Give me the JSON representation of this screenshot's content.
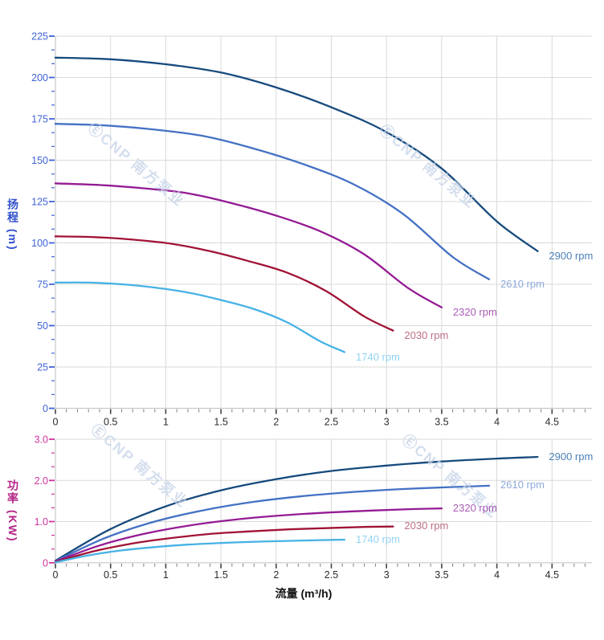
{
  "watermark": "ⒺCNP 南方泵业",
  "axis": {
    "grid_color": "#d9d9d9",
    "axis_line_color": "#c9c9c9",
    "x_tick_color": "#444444",
    "x_minor_tick_color": "#8a8a8a",
    "x_tick_label_color": "#2b2b2b"
  },
  "chart_data": [
    {
      "key": "head",
      "type": "line",
      "y_axis_title": "扬程 (m)",
      "axis_color": "#3050cc",
      "tick_color": "#3f63d8",
      "ylim": [
        0,
        225
      ],
      "xlim": [
        0,
        4.5
      ],
      "grid": true,
      "y_ticks": [
        {
          "v": 0,
          "label": "0"
        },
        {
          "v": 25,
          "label": "25"
        },
        {
          "v": 50,
          "label": "50"
        },
        {
          "v": 75,
          "label": "75"
        },
        {
          "v": 100,
          "label": "100"
        },
        {
          "v": 125,
          "label": "125"
        },
        {
          "v": 150,
          "label": "150"
        },
        {
          "v": 175,
          "label": "175"
        },
        {
          "v": 200,
          "label": "200"
        },
        {
          "v": 225,
          "label": "225"
        }
      ],
      "x_ticks": [
        {
          "v": 0,
          "label": "0"
        },
        {
          "v": 0.5,
          "label": "0.5"
        },
        {
          "v": 1,
          "label": "1"
        },
        {
          "v": 1.5,
          "label": "1.5"
        },
        {
          "v": 2,
          "label": "2"
        },
        {
          "v": 2.5,
          "label": "2.5"
        },
        {
          "v": 3,
          "label": "3"
        },
        {
          "v": 3.5,
          "label": "3.5"
        },
        {
          "v": 4,
          "label": "4"
        },
        {
          "v": 4.5,
          "label": "4.5"
        }
      ],
      "series": [
        {
          "name": "2900 rpm",
          "color": "#174a7d",
          "label_color": "#4d80b6",
          "points": [
            [
              0,
              212
            ],
            [
              0.5,
              211
            ],
            [
              1,
              208
            ],
            [
              1.5,
              203
            ],
            [
              2,
              194
            ],
            [
              2.5,
              182
            ],
            [
              3,
              167
            ],
            [
              3.5,
              145
            ],
            [
              4,
              113
            ],
            [
              4.37,
              95
            ]
          ]
        },
        {
          "name": "2610 rpm",
          "color": "#4471c4",
          "label_color": "#8ea9db",
          "points": [
            [
              0,
              172
            ],
            [
              0.45,
              171
            ],
            [
              0.9,
              168.5
            ],
            [
              1.35,
              164.5
            ],
            [
              1.8,
              157
            ],
            [
              2.25,
              147.5
            ],
            [
              2.7,
              135.5
            ],
            [
              3.15,
              117.5
            ],
            [
              3.6,
              91.5
            ],
            [
              3.93,
              78
            ]
          ]
        },
        {
          "name": "2320 rpm",
          "color": "#941b94",
          "label_color": "#a95cb5",
          "points": [
            [
              0,
              136
            ],
            [
              0.4,
              135
            ],
            [
              0.8,
              133
            ],
            [
              1.2,
              130
            ],
            [
              1.6,
              124
            ],
            [
              2,
              116.5
            ],
            [
              2.4,
              107
            ],
            [
              2.8,
              93
            ],
            [
              3.2,
              72.5
            ],
            [
              3.5,
              61
            ]
          ]
        },
        {
          "name": "2030 rpm",
          "color": "#a01334",
          "label_color": "#bd6f82",
          "points": [
            [
              0,
              104
            ],
            [
              0.35,
              103.5
            ],
            [
              0.7,
              102
            ],
            [
              1.05,
              99.5
            ],
            [
              1.4,
              95
            ],
            [
              1.75,
              89
            ],
            [
              2.1,
              82
            ],
            [
              2.45,
              71
            ],
            [
              2.8,
              55.5
            ],
            [
              3.06,
              47
            ]
          ]
        },
        {
          "name": "1740 rpm",
          "color": "#46b2e5",
          "label_color": "#90d3f3",
          "points": [
            [
              0,
              76
            ],
            [
              0.3,
              76
            ],
            [
              0.6,
              75
            ],
            [
              0.9,
              73
            ],
            [
              1.2,
              70
            ],
            [
              1.5,
              65.5
            ],
            [
              1.8,
              60
            ],
            [
              2.1,
              52
            ],
            [
              2.4,
              40.5
            ],
            [
              2.62,
              34
            ]
          ]
        }
      ]
    },
    {
      "key": "power",
      "type": "line",
      "y_axis_title": "功率 (KW)",
      "x_axis_title": "流量 (m³/h)",
      "axis_color": "#b32486",
      "tick_color": "#d0339b",
      "ylim": [
        0,
        3
      ],
      "xlim": [
        0,
        4.5
      ],
      "grid": true,
      "y_ticks": [
        {
          "v": 0,
          "label": "0"
        },
        {
          "v": 1,
          "label": "1.0"
        },
        {
          "v": 2,
          "label": "2.0"
        },
        {
          "v": 3,
          "label": "3.0"
        }
      ],
      "x_ticks": [
        {
          "v": 0,
          "label": "0"
        },
        {
          "v": 0.5,
          "label": "0.5"
        },
        {
          "v": 1,
          "label": "1"
        },
        {
          "v": 1.5,
          "label": "1.5"
        },
        {
          "v": 2,
          "label": "2"
        },
        {
          "v": 2.5,
          "label": "2.5"
        },
        {
          "v": 3,
          "label": "3"
        },
        {
          "v": 3.5,
          "label": "3.5"
        },
        {
          "v": 4,
          "label": "4"
        },
        {
          "v": 4.5,
          "label": "4.5"
        }
      ],
      "series": [
        {
          "name": "2900 rpm",
          "color": "#174a7d",
          "label_color": "#4d80b6",
          "points": [
            [
              0,
              0.05
            ],
            [
              0.5,
              0.82
            ],
            [
              1,
              1.37
            ],
            [
              1.5,
              1.76
            ],
            [
              2,
              2.03
            ],
            [
              2.5,
              2.23
            ],
            [
              3,
              2.36
            ],
            [
              3.5,
              2.46
            ],
            [
              4,
              2.53
            ],
            [
              4.37,
              2.57
            ]
          ]
        },
        {
          "name": "2610 rpm",
          "color": "#4471c4",
          "label_color": "#8ea9db",
          "points": [
            [
              0,
              0.04
            ],
            [
              0.45,
              0.6
            ],
            [
              0.9,
              1.0
            ],
            [
              1.35,
              1.28
            ],
            [
              1.8,
              1.48
            ],
            [
              2.25,
              1.62
            ],
            [
              2.7,
              1.72
            ],
            [
              3.15,
              1.79
            ],
            [
              3.6,
              1.84
            ],
            [
              3.93,
              1.87
            ]
          ]
        },
        {
          "name": "2320 rpm",
          "color": "#941b94",
          "label_color": "#a95cb5",
          "points": [
            [
              0,
              0.03
            ],
            [
              0.4,
              0.42
            ],
            [
              0.8,
              0.7
            ],
            [
              1.2,
              0.9
            ],
            [
              1.6,
              1.04
            ],
            [
              2,
              1.14
            ],
            [
              2.4,
              1.21
            ],
            [
              2.8,
              1.26
            ],
            [
              3.2,
              1.3
            ],
            [
              3.5,
              1.32
            ]
          ]
        },
        {
          "name": "2030 rpm",
          "color": "#a01334",
          "label_color": "#bd6f82",
          "points": [
            [
              0,
              0.02
            ],
            [
              0.35,
              0.28
            ],
            [
              0.7,
              0.47
            ],
            [
              1.05,
              0.6
            ],
            [
              1.4,
              0.7
            ],
            [
              1.75,
              0.76
            ],
            [
              2.1,
              0.81
            ],
            [
              2.45,
              0.84
            ],
            [
              2.8,
              0.87
            ],
            [
              3.06,
              0.88
            ]
          ]
        },
        {
          "name": "1740 rpm",
          "color": "#46b2e5",
          "label_color": "#90d3f3",
          "points": [
            [
              0,
              0.01
            ],
            [
              0.3,
              0.18
            ],
            [
              0.6,
              0.3
            ],
            [
              0.9,
              0.38
            ],
            [
              1.2,
              0.44
            ],
            [
              1.5,
              0.48
            ],
            [
              1.8,
              0.51
            ],
            [
              2.1,
              0.53
            ],
            [
              2.4,
              0.55
            ],
            [
              2.62,
              0.56
            ]
          ]
        }
      ]
    }
  ]
}
